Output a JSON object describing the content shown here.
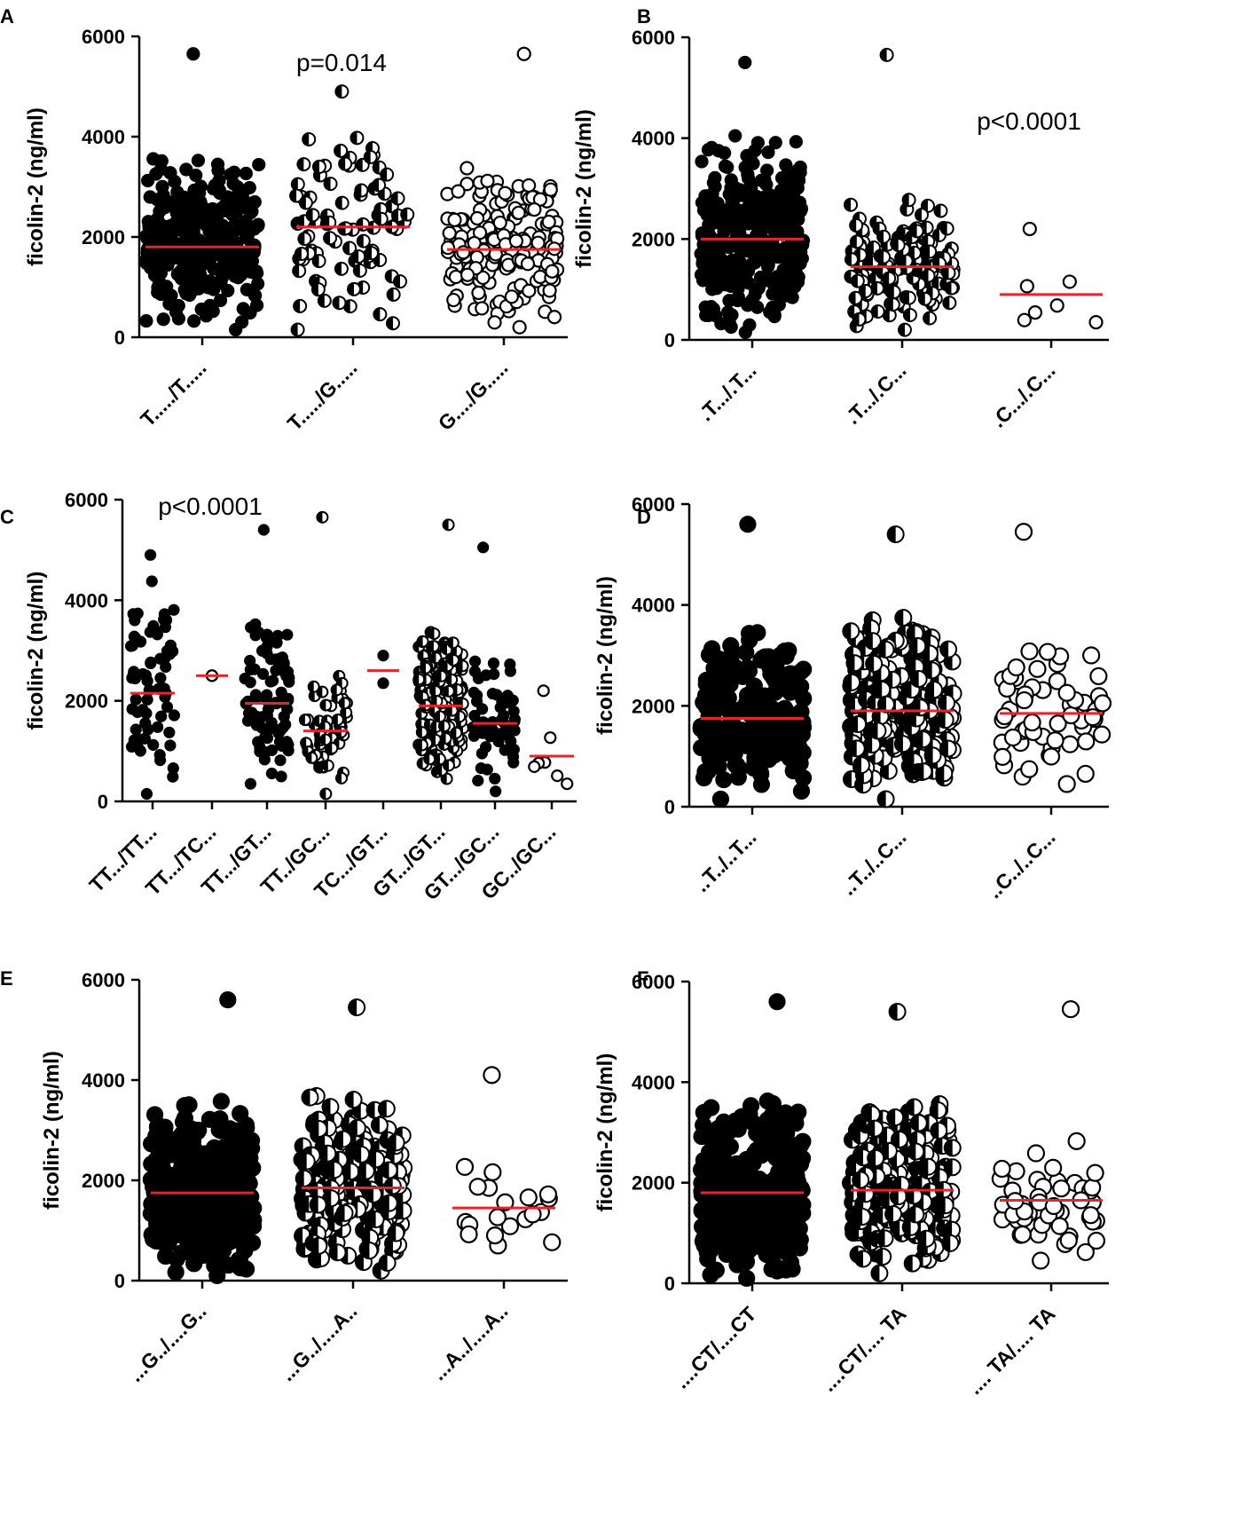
{
  "figure": {
    "median_color": "#e8232a",
    "point_color": "#000000"
  },
  "chart_data": [
    {
      "panel": "A",
      "type": "scatter",
      "ylabel": "ficolin-2 (ng/ml)",
      "ylim": [
        0,
        6000
      ],
      "yticks": [
        "0",
        "2000",
        "4000",
        "6000"
      ],
      "pvalue": "p=0.014",
      "groups": [
        {
          "label": "T...../T.....",
          "marker": "filled",
          "n": 330,
          "median": 1800,
          "min": 150,
          "max": 5650
        },
        {
          "label": "T...../G.....",
          "marker": "half",
          "n": 90,
          "median": 2200,
          "min": 150,
          "max": 4900
        },
        {
          "label": "G..../G.....",
          "marker": "open",
          "n": 190,
          "median": 1750,
          "min": 200,
          "max": 5650
        }
      ]
    },
    {
      "panel": "B",
      "type": "scatter",
      "ylabel": "ficolin-2 (ng/ml)",
      "ylim": [
        0,
        6000
      ],
      "yticks": [
        "0",
        "2000",
        "4000",
        "6000"
      ],
      "pvalue": "p<0.0001",
      "groups": [
        {
          "label": ".T.../.T...",
          "marker": "filled",
          "n": 320,
          "median": 2000,
          "min": 150,
          "max": 5500
        },
        {
          "label": ".T.../.C...",
          "marker": "half",
          "n": 150,
          "median": 1450,
          "min": 200,
          "max": 5650
        },
        {
          "label": ".C.../.C...",
          "marker": "open",
          "n": 7,
          "median": 900,
          "min": 350,
          "max": 2200
        }
      ]
    },
    {
      "panel": "C",
      "type": "scatter",
      "ylabel": "ficolin-2 (ng/ml)",
      "ylim": [
        0,
        6000
      ],
      "yticks": [
        "0",
        "2000",
        "4000",
        "6000"
      ],
      "pvalue": "p<0.0001",
      "groups": [
        {
          "label": "TT.../TT...",
          "marker": "filled",
          "n": 70,
          "median": 2150,
          "min": 150,
          "max": 4900
        },
        {
          "label": "TT.../TC...",
          "marker": "open",
          "n": 1,
          "median": 2500,
          "min": 2500,
          "max": 2500
        },
        {
          "label": "TT.../GT...",
          "marker": "filled",
          "n": 90,
          "median": 1950,
          "min": 350,
          "max": 5400
        },
        {
          "label": "TT../GC...",
          "marker": "half",
          "n": 50,
          "median": 1400,
          "min": 150,
          "max": 5650
        },
        {
          "label": "TC.../GT...",
          "marker": "filled",
          "n": 2,
          "median": 2600,
          "min": 2350,
          "max": 2900
        },
        {
          "label": "GT.../GT...",
          "marker": "half",
          "n": 180,
          "median": 1900,
          "min": 450,
          "max": 5500
        },
        {
          "label": "GT.../GC...",
          "marker": "filled",
          "n": 60,
          "median": 1550,
          "min": 200,
          "max": 5050
        },
        {
          "label": "GC../GC...",
          "marker": "open",
          "n": 7,
          "median": 900,
          "min": 350,
          "max": 2200
        }
      ]
    },
    {
      "panel": "D",
      "type": "scatter",
      "ylabel": "ficolin-2 (ng/ml)",
      "ylim": [
        0,
        6000
      ],
      "yticks": [
        "0",
        "2000",
        "4000",
        "6000"
      ],
      "pvalue": "",
      "groups": [
        {
          "label": "..T../..T...",
          "marker": "filled",
          "n": 220,
          "median": 1750,
          "min": 150,
          "max": 5600
        },
        {
          "label": "..T../..C...",
          "marker": "half",
          "n": 250,
          "median": 1900,
          "min": 150,
          "max": 5400
        },
        {
          "label": "..C../..C...",
          "marker": "open",
          "n": 60,
          "median": 1850,
          "min": 450,
          "max": 5450
        }
      ]
    },
    {
      "panel": "E",
      "type": "scatter",
      "ylabel": "ficolin-2 (ng/ml)",
      "ylim": [
        0,
        6000
      ],
      "yticks": [
        "0",
        "2000",
        "4000",
        "6000"
      ],
      "pvalue": "",
      "groups": [
        {
          "label": "...G../....G..",
          "marker": "filled",
          "n": 380,
          "median": 1750,
          "min": 100,
          "max": 5600
        },
        {
          "label": "...G../....A..",
          "marker": "half",
          "n": 230,
          "median": 1850,
          "min": 200,
          "max": 5450
        },
        {
          "label": "...A../....A..",
          "marker": "open",
          "n": 20,
          "median": 1450,
          "min": 700,
          "max": 4100
        }
      ]
    },
    {
      "panel": "F",
      "type": "scatter",
      "ylabel": "ficolin-2 (ng/ml)",
      "ylim": [
        0,
        6000
      ],
      "yticks": [
        "0",
        "2000",
        "4000",
        "6000"
      ],
      "pvalue": "",
      "groups": [
        {
          "label": "....CT/....CT",
          "marker": "filled",
          "n": 360,
          "median": 1800,
          "min": 100,
          "max": 5600
        },
        {
          "label": "....CT/.... TA",
          "marker": "half",
          "n": 250,
          "median": 1850,
          "min": 200,
          "max": 5400
        },
        {
          "label": ".... TA/.... TA",
          "marker": "open",
          "n": 50,
          "median": 1650,
          "min": 450,
          "max": 5450
        }
      ]
    }
  ]
}
